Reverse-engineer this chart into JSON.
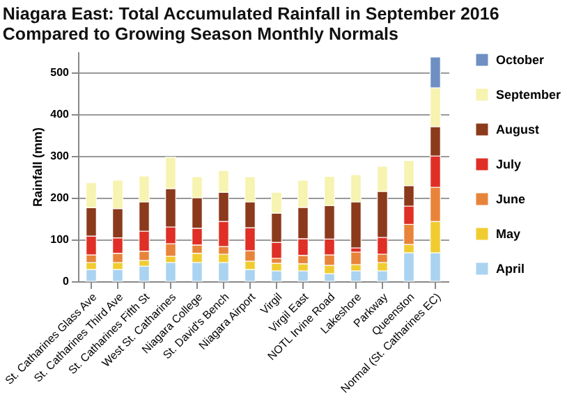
{
  "chart_data": {
    "type": "bar",
    "stacked": true,
    "title": "Niagara East: Total Accumulated Rainfall in September 2016 Compared to Growing Season Monthly Normals",
    "ylabel": "Rainfall (mm)",
    "categories": [
      "St. Catharines Glass Ave",
      "St. Catharines Third Ave",
      "St. Catharines Fifth St",
      "West St. Catharines",
      "Niagara College",
      "St. David's Bench",
      "Niagara Airport",
      "Virgil",
      "Virgil East",
      "NOTL Irvine Road",
      "Lakeshore",
      "Parkway",
      "Queenston",
      "Normal (St. Catharines EC)"
    ],
    "series": [
      {
        "name": "April",
        "color": "#a9d3f0",
        "values": [
          28,
          28,
          36,
          45,
          45,
          45,
          28,
          25,
          25,
          18,
          25,
          25,
          68,
          68
        ]
      },
      {
        "name": "May",
        "color": "#f0cc30",
        "values": [
          17,
          17,
          14,
          15,
          22,
          20,
          20,
          18,
          17,
          20,
          15,
          20,
          20,
          75
        ]
      },
      {
        "name": "June",
        "color": "#e8843a",
        "values": [
          18,
          22,
          22,
          30,
          20,
          18,
          25,
          12,
          20,
          25,
          30,
          20,
          48,
          82
        ]
      },
      {
        "name": "July",
        "color": "#df2f26",
        "values": [
          45,
          37,
          48,
          40,
          40,
          60,
          55,
          38,
          40,
          38,
          10,
          40,
          44,
          75
        ]
      },
      {
        "name": "August",
        "color": "#8b3a1c",
        "values": [
          68,
          70,
          70,
          92,
          73,
          70,
          62,
          70,
          75,
          80,
          110,
          110,
          49,
          70
        ]
      },
      {
        "name": "September",
        "color": "#f7f3b0",
        "values": [
          60,
          68,
          62,
          75,
          50,
          52,
          60,
          50,
          65,
          70,
          65,
          60,
          60,
          93
        ]
      },
      {
        "name": "October",
        "color": "#6f8fc2",
        "values": [
          null,
          null,
          null,
          null,
          null,
          null,
          null,
          null,
          null,
          null,
          null,
          null,
          null,
          74
        ]
      }
    ],
    "ylim": [
      0,
      550
    ],
    "yticks": [
      0,
      100,
      200,
      300,
      400,
      500
    ],
    "grid": "y",
    "legend": "right"
  }
}
